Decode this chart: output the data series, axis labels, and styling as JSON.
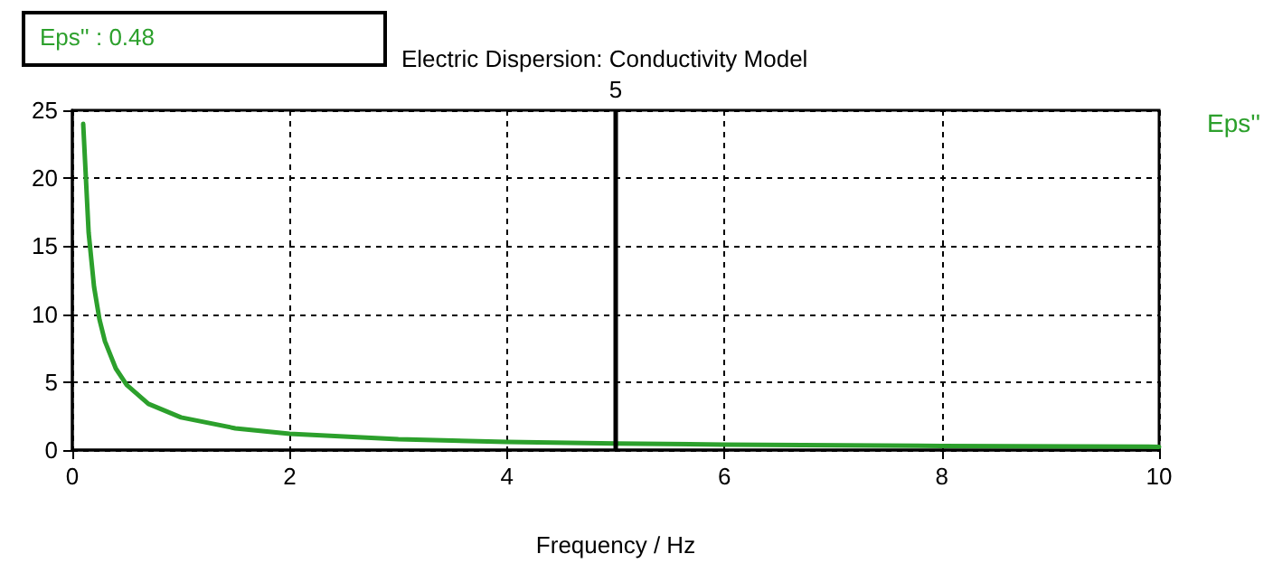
{
  "chart_data": {
    "type": "line",
    "title": "Electric Dispersion: Conductivity Model",
    "xlabel": "Frequency / Hz",
    "annotations": [
      "Eps'' : 0.48"
    ],
    "series": [
      {
        "name": "Eps''",
        "color": "#2ca02c",
        "x": [
          0.1,
          0.15,
          0.2,
          0.25,
          0.3,
          0.4,
          0.5,
          0.7,
          1,
          1.5,
          2,
          3,
          4,
          5,
          6,
          8,
          10
        ],
        "values": [
          24,
          16,
          12,
          9.6,
          8,
          6,
          4.8,
          3.4,
          2.4,
          1.6,
          1.2,
          0.8,
          0.6,
          0.48,
          0.4,
          0.3,
          0.24
        ]
      }
    ],
    "xlim": [
      0,
      10
    ],
    "xticks": [
      0,
      2,
      4,
      6,
      8,
      10
    ],
    "ylim": [
      0,
      25
    ],
    "yticks": [
      0,
      5,
      10,
      15,
      20,
      25
    ],
    "ref_lines": [
      {
        "axis": "x",
        "value": 5,
        "label": "5",
        "color": "#000000"
      }
    ],
    "grid": true,
    "legend": "top right",
    "marker": "none",
    "line_style": "solid"
  }
}
